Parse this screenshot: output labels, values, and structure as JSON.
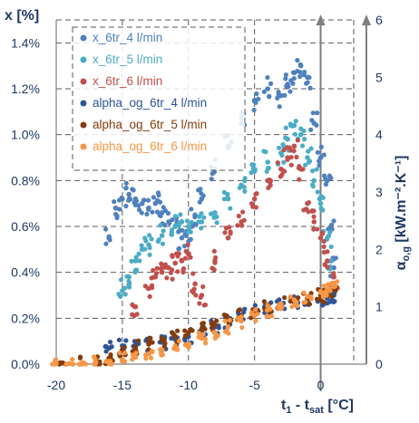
{
  "chart_data": {
    "type": "scatter",
    "title": "",
    "xlabel_main": "t",
    "xlabel_sub1": "1",
    "xlabel_mid": " - t",
    "xlabel_sub2": "sat",
    "xlabel_unit": " [°C]",
    "ylabel_left": "x [%]",
    "ylabel_right_symbol": "α",
    "ylabel_right_sub": "o,g",
    "ylabel_right_unit": "[kW.m⁻².K⁻¹]",
    "xlim": [
      -20,
      2.5
    ],
    "ylim_left": [
      0,
      1.5
    ],
    "ylim_right": [
      0,
      6
    ],
    "x_ticks": [
      -20,
      -15,
      -10,
      -5,
      0
    ],
    "x_tick_labels": [
      "-20",
      "-15",
      "-10",
      "-5",
      "0"
    ],
    "y_left_ticks": [
      0,
      0.2,
      0.4,
      0.6,
      0.8,
      1.0,
      1.2,
      1.4
    ],
    "y_left_tick_labels": [
      "0.0%",
      "0.2%",
      "0.4%",
      "0.6%",
      "0.8%",
      "1.0%",
      "1.2%",
      "1.4%"
    ],
    "y_right_ticks": [
      0,
      1,
      2,
      3,
      4,
      5,
      6
    ],
    "y_right_tick_labels": [
      "0",
      "1",
      "2",
      "3",
      "4",
      "5",
      "6"
    ],
    "grid": true,
    "legend_position": "top-left",
    "series": [
      {
        "name": "x_6tr_4 l/min",
        "axis": "left",
        "color": "#4f81bd",
        "points": [
          [
            -16,
            0.55
          ],
          [
            -15.5,
            0.68
          ],
          [
            -15,
            0.72
          ],
          [
            -14.5,
            0.74
          ],
          [
            -14,
            0.72
          ],
          [
            -13.5,
            0.7
          ],
          [
            -13,
            0.68
          ],
          [
            -12.5,
            0.7
          ],
          [
            -12,
            0.66
          ],
          [
            -11.5,
            0.62
          ],
          [
            -11,
            0.6
          ],
          [
            -10.5,
            0.55
          ],
          [
            -10,
            0.58
          ],
          [
            -9.5,
            0.65
          ],
          [
            -9,
            0.72
          ],
          [
            -8,
            0.85
          ],
          [
            -7,
            0.95
          ],
          [
            -6,
            1.05
          ],
          [
            -5,
            1.15
          ],
          [
            -4,
            1.2
          ],
          [
            -3,
            1.17
          ],
          [
            -2.5,
            1.22
          ],
          [
            -2,
            1.27
          ],
          [
            -1.5,
            1.3
          ],
          [
            -1,
            1.25
          ],
          [
            -0.5,
            1.05
          ],
          [
            0,
            0.9
          ],
          [
            0.5,
            0.8
          ],
          [
            0.8,
            0.6
          ],
          [
            1,
            0.42
          ]
        ]
      },
      {
        "name": "x_6tr_5 l/min",
        "axis": "left",
        "color": "#4bacc6",
        "points": [
          [
            -15,
            0.32
          ],
          [
            -14.5,
            0.38
          ],
          [
            -14,
            0.45
          ],
          [
            -13.5,
            0.5
          ],
          [
            -13,
            0.52
          ],
          [
            -12,
            0.56
          ],
          [
            -11,
            0.6
          ],
          [
            -10.5,
            0.62
          ],
          [
            -10,
            0.6
          ],
          [
            -9,
            0.62
          ],
          [
            -8,
            0.66
          ],
          [
            -7,
            0.72
          ],
          [
            -6,
            0.78
          ],
          [
            -5,
            0.84
          ],
          [
            -4,
            0.88
          ],
          [
            -3,
            0.92
          ],
          [
            -2.5,
            0.98
          ],
          [
            -2,
            1.04
          ],
          [
            -1.5,
            1.0
          ],
          [
            -1,
            0.9
          ],
          [
            -0.5,
            0.8
          ],
          [
            0,
            0.7
          ],
          [
            0.5,
            0.55
          ],
          [
            0.8,
            0.45
          ]
        ]
      },
      {
        "name": "x_6tr_6 l/min",
        "axis": "left",
        "color": "#c0504d",
        "points": [
          [
            -14,
            0.25
          ],
          [
            -13,
            0.33
          ],
          [
            -12.5,
            0.38
          ],
          [
            -12,
            0.4
          ],
          [
            -11.5,
            0.42
          ],
          [
            -11,
            0.44
          ],
          [
            -10.5,
            0.45
          ],
          [
            -10,
            0.48
          ],
          [
            -9.5,
            0.35
          ],
          [
            -9,
            0.3
          ],
          [
            -8,
            0.45
          ],
          [
            -7,
            0.55
          ],
          [
            -6,
            0.62
          ],
          [
            -5,
            0.72
          ],
          [
            -4,
            0.8
          ],
          [
            -3,
            0.85
          ],
          [
            -2.5,
            0.9
          ],
          [
            -2,
            0.95
          ],
          [
            -1.5,
            0.85
          ],
          [
            -1,
            0.7
          ],
          [
            -0.5,
            0.62
          ],
          [
            0,
            0.55
          ],
          [
            0.5,
            0.45
          ],
          [
            1,
            0.38
          ]
        ]
      },
      {
        "name": "alpha_og_6tr_4 l/min",
        "axis": "right",
        "color": "#2e5597",
        "points": [
          [
            -16,
            0.28
          ],
          [
            -15,
            0.32
          ],
          [
            -14,
            0.33
          ],
          [
            -13,
            0.35
          ],
          [
            -12,
            0.38
          ],
          [
            -11,
            0.43
          ],
          [
            -10,
            0.48
          ],
          [
            -9,
            0.55
          ],
          [
            -8,
            0.65
          ],
          [
            -7,
            0.75
          ],
          [
            -6,
            0.85
          ],
          [
            -5,
            0.95
          ],
          [
            -4,
            1.0
          ],
          [
            -3,
            1.05
          ],
          [
            -2,
            1.08
          ],
          [
            -1,
            1.1
          ],
          [
            0,
            1.12
          ],
          [
            0.5,
            1.15
          ],
          [
            1,
            1.2
          ]
        ]
      },
      {
        "name": "alpha_og_6tr_5 l/min",
        "axis": "right",
        "color": "#843c0c",
        "points": [
          [
            -19.5,
            0.02
          ],
          [
            -18,
            0.02
          ],
          [
            -17,
            0.05
          ],
          [
            -16,
            0.1
          ],
          [
            -15,
            0.25
          ],
          [
            -14,
            0.3
          ],
          [
            -13,
            0.35
          ],
          [
            -12,
            0.42
          ],
          [
            -11,
            0.48
          ],
          [
            -10,
            0.55
          ],
          [
            -9,
            0.6
          ],
          [
            -8,
            0.68
          ],
          [
            -7,
            0.78
          ],
          [
            -6,
            0.85
          ],
          [
            -5,
            0.92
          ],
          [
            -4,
            1.0
          ],
          [
            -3,
            1.05
          ],
          [
            -2,
            1.1
          ],
          [
            -1,
            1.15
          ],
          [
            0,
            1.2
          ],
          [
            0.5,
            1.25
          ],
          [
            1,
            1.3
          ]
        ]
      },
      {
        "name": "alpha_og_6tr_6 l/min",
        "axis": "right",
        "color": "#f79646",
        "points": [
          [
            -20,
            0.01
          ],
          [
            -19,
            0.01
          ],
          [
            -18,
            0.02
          ],
          [
            -17,
            0.03
          ],
          [
            -16,
            0.05
          ],
          [
            -15,
            0.08
          ],
          [
            -14,
            0.12
          ],
          [
            -13,
            0.18
          ],
          [
            -12,
            0.25
          ],
          [
            -11,
            0.3
          ],
          [
            -10,
            0.35
          ],
          [
            -9,
            0.45
          ],
          [
            -8,
            0.55
          ],
          [
            -7,
            0.65
          ],
          [
            -6,
            0.75
          ],
          [
            -5,
            0.85
          ],
          [
            -4,
            0.95
          ],
          [
            -3,
            1.05
          ],
          [
            -2,
            1.12
          ],
          [
            -1,
            1.18
          ],
          [
            0,
            1.25
          ],
          [
            0.5,
            1.3
          ],
          [
            1,
            1.35
          ]
        ]
      }
    ]
  }
}
